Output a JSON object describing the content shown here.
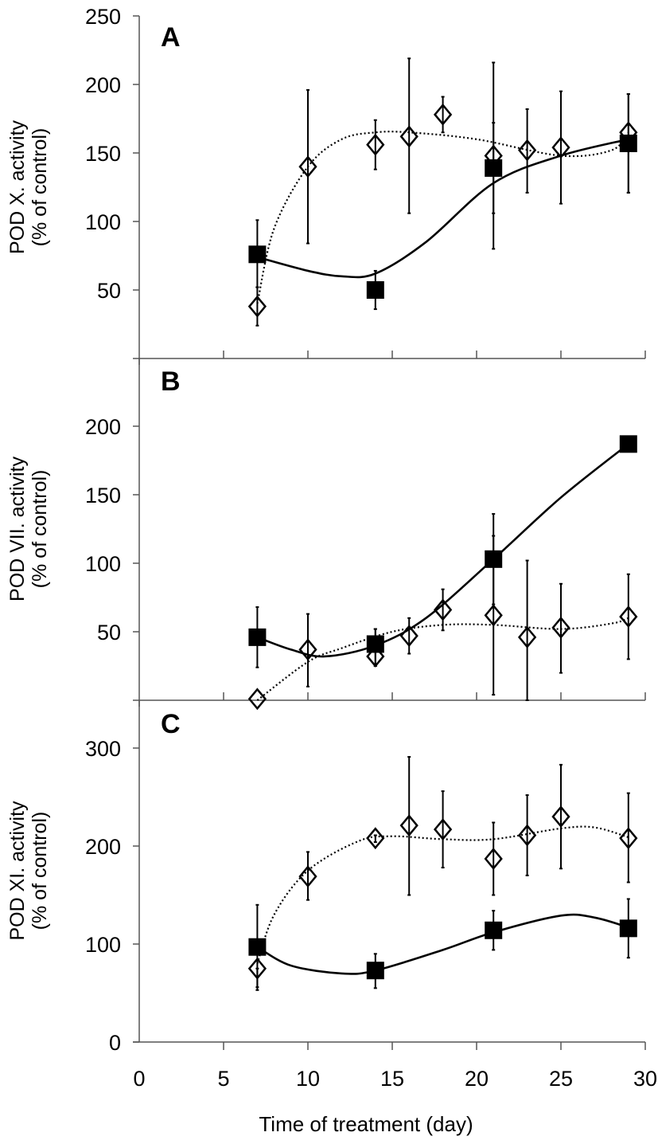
{
  "chart_data": {
    "type": "scatter",
    "xlabel": "Time of treatment (day)",
    "xlim": [
      0,
      30
    ],
    "xticks": [
      0,
      5,
      10,
      15,
      20,
      25,
      30
    ],
    "panels": [
      {
        "letter": "A",
        "ylabel": [
          "POD X. activity",
          "(% of control)"
        ],
        "ylim": [
          0,
          250
        ],
        "yticks": [
          50,
          100,
          150,
          200,
          250
        ],
        "series": [
          {
            "name": "squares",
            "marker": "square",
            "line": "solid",
            "x": [
              7,
              14,
              21,
              29
            ],
            "y": [
              76,
              50,
              139,
              157
            ],
            "err_low": [
              52,
              36,
              106,
              121
            ],
            "err_high": [
              101,
              64,
              172,
              193
            ],
            "fit": [
              [
                7,
                74
              ],
              [
                10,
                64
              ],
              [
                12,
                60
              ],
              [
                14,
                62
              ],
              [
                17,
                85
              ],
              [
                21,
                128
              ],
              [
                25,
                148
              ],
              [
                29,
                160
              ]
            ]
          },
          {
            "name": "diamonds",
            "marker": "diamond",
            "line": "dotted",
            "x": [
              7,
              10,
              14,
              16,
              18,
              21,
              23,
              25,
              29
            ],
            "y": [
              38,
              140,
              156,
              162,
              178,
              148,
              152,
              154,
              165
            ],
            "err_low": [
              24,
              84,
              138,
              106,
              165,
              80,
              121,
              113,
              121
            ],
            "err_high": [
              52,
              196,
              174,
              219,
              191,
              216,
              182,
              195,
              193
            ],
            "fit": [
              [
                7,
                40
              ],
              [
                8,
                95
              ],
              [
                10,
                140
              ],
              [
                12,
                160
              ],
              [
                14,
                165
              ],
              [
                16,
                165
              ],
              [
                20,
                160
              ],
              [
                25,
                148
              ],
              [
                28,
                152
              ],
              [
                29,
                165
              ]
            ]
          }
        ]
      },
      {
        "letter": "B",
        "ylabel": [
          "POD VII. activity",
          "(% of control)"
        ],
        "ylim": [
          0,
          250
        ],
        "yticks": [
          50,
          100,
          150,
          200
        ],
        "series": [
          {
            "name": "squares",
            "marker": "square",
            "line": "solid",
            "x": [
              7,
              14,
              21,
              29
            ],
            "y": [
              46,
              41,
              103,
              187
            ],
            "err_low": [
              24,
              25,
              70,
              187
            ],
            "err_high": [
              68,
              52,
              136,
              187
            ],
            "fit": [
              [
                7,
                46
              ],
              [
                9,
                37
              ],
              [
                11,
                32
              ],
              [
                14,
                40
              ],
              [
                17,
                60
              ],
              [
                21,
                103
              ],
              [
                25,
                148
              ],
              [
                29,
                187
              ]
            ]
          },
          {
            "name": "diamonds",
            "marker": "diamond",
            "line": "dotted",
            "x": [
              7,
              10,
              14,
              16,
              18,
              21,
              23,
              25,
              29
            ],
            "y": [
              1,
              37,
              32,
              47,
              66,
              62,
              46,
              53,
              61
            ],
            "err_low": [
              1,
              10,
              25,
              34,
              51,
              4,
              0,
              20,
              30
            ],
            "err_high": [
              1,
              63,
              52,
              60,
              81,
              120,
              102,
              85,
              92
            ],
            "fit": [
              [
                7,
                0
              ],
              [
                10,
                28
              ],
              [
                12,
                38
              ],
              [
                15,
                50
              ],
              [
                18,
                55
              ],
              [
                21,
                55
              ],
              [
                25,
                52
              ],
              [
                28,
                56
              ],
              [
                29,
                60
              ]
            ]
          }
        ]
      },
      {
        "letter": "C",
        "ylabel": [
          "POD XI. activity",
          "(% of control)"
        ],
        "ylim": [
          0,
          350
        ],
        "yticks": [
          0,
          100,
          200,
          300
        ],
        "series": [
          {
            "name": "squares",
            "marker": "square",
            "line": "solid",
            "x": [
              7,
              14,
              21,
              29
            ],
            "y": [
              97,
              73,
              114,
              116
            ],
            "err_low": [
              53,
              55,
              94,
              86
            ],
            "err_high": [
              140,
              90,
              134,
              146
            ],
            "fit": [
              [
                7,
                97
              ],
              [
                9,
                78
              ],
              [
                12,
                70
              ],
              [
                14,
                73
              ],
              [
                18,
                94
              ],
              [
                21,
                112
              ],
              [
                25,
                129
              ],
              [
                27,
                127
              ],
              [
                29,
                117
              ]
            ]
          },
          {
            "name": "diamonds",
            "marker": "diamond",
            "line": "dotted",
            "x": [
              7,
              10,
              14,
              16,
              18,
              21,
              23,
              25,
              29
            ],
            "y": [
              75,
              169,
              208,
              221,
              217,
              187,
              211,
              230,
              208
            ],
            "err_low": [
              56,
              145,
              204,
              150,
              178,
              150,
              170,
              177,
              163
            ],
            "err_high": [
              75,
              194,
              211,
              291,
              256,
              224,
              252,
              283,
              254
            ],
            "fit": [
              [
                7,
                80
              ],
              [
                8,
                130
              ],
              [
                10,
                175
              ],
              [
                13,
                205
              ],
              [
                15,
                210
              ],
              [
                18,
                207
              ],
              [
                21,
                207
              ],
              [
                25,
                218
              ],
              [
                27,
                219
              ],
              [
                29,
                209
              ]
            ]
          }
        ]
      }
    ]
  }
}
